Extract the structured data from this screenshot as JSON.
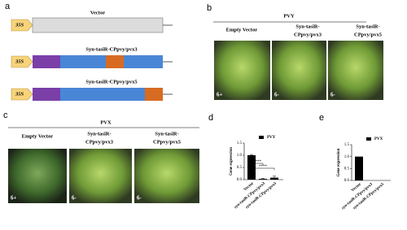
{
  "panels": {
    "a": {
      "label": "a",
      "promoter": "35S",
      "constructs": [
        "Vector",
        "Syn-tasiR-CPpvy/pvx3",
        "Syn-tasiR-CPpvy/pvx5"
      ]
    },
    "b": {
      "label": "b",
      "virus": "PVY",
      "columns": [
        [
          "Empty",
          "Vector"
        ],
        [
          "Syn-tasiR-",
          "CPpvy/pvx3"
        ],
        [
          "Syn-tasiR-",
          "CPpvy/pvx5"
        ]
      ],
      "photo_labels": [
        "6+",
        "6-",
        "6-"
      ]
    },
    "c": {
      "label": "c",
      "virus": "PVX",
      "columns": [
        [
          "Empty",
          "Vector"
        ],
        [
          "Syn-tasiR-",
          "CPpvy/pvx3"
        ],
        [
          "Syn-tasiR-",
          "CPpvy/pvx5"
        ]
      ],
      "photo_labels": [
        "6+",
        "6-",
        "6-"
      ]
    },
    "d": {
      "label": "d"
    },
    "e": {
      "label": "e"
    }
  },
  "chart_data": [
    {
      "type": "bar",
      "ylabel": "Gene expression",
      "categories": [
        "Vector",
        "syn-tasiR-CPpvy/pvx3",
        "syn-tasiR-CPpvy/pvx5"
      ],
      "series": [
        {
          "name": "PVY",
          "color": "#000000",
          "values": [
            1.0,
            0.03,
            0.08
          ],
          "errors": [
            0.03,
            0.02,
            0.06
          ]
        }
      ],
      "ylim": [
        0,
        1.5
      ],
      "yticks": [
        {
          "value": 0,
          "label": "0.0"
        },
        {
          "value": 0.5,
          "label": "0.5"
        },
        {
          "value": 1,
          "label": "1.0"
        },
        {
          "value": 1.5,
          "label": "1.5"
        }
      ],
      "annotations": [
        "****",
        "****"
      ]
    },
    {
      "type": "bar",
      "ylabel": "Gene expression",
      "categories": [
        "Vector",
        "syn-tasiR-CPpvy/pvx3",
        "syn-tasiR-CPpvy/pvx5"
      ],
      "series": [
        {
          "name": "PVX",
          "color": "#000000",
          "values": [
            1.0,
            0,
            0
          ]
        }
      ],
      "ylim": [
        0,
        1.5
      ],
      "yticks": [
        {
          "value": 0,
          "label": "0.0"
        },
        {
          "value": 0.5,
          "label": "0.5"
        },
        {
          "value": 1,
          "label": "1.0"
        },
        {
          "value": 1.5,
          "label": "1.5"
        }
      ]
    }
  ]
}
